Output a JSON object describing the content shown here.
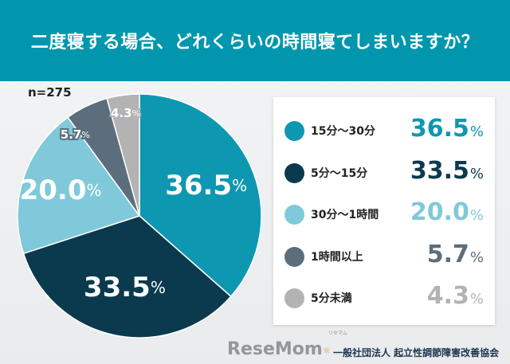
{
  "header": {
    "title": "二度寝する場合、どれくらいの時間寝てしまいますか？"
  },
  "chart_data": {
    "type": "pie",
    "title": "二度寝する場合、どれくらいの時間寝てしまいますか？",
    "sample": "n=275",
    "unit": "%",
    "categories": [
      "15分～30分",
      "5分～15分",
      "30分～1時間",
      "1時間以上",
      "5分未満"
    ],
    "values": [
      36.5,
      33.5,
      20.0,
      5.7,
      4.3
    ],
    "labels": [
      "36.5",
      "33.5",
      "20.0",
      "5.7",
      "4.3"
    ],
    "colors": [
      "#0e97b0",
      "#0b3a4e",
      "#7fc9da",
      "#5c6e7c",
      "#b3b3b3"
    ],
    "start": "12 o'clock, clockwise",
    "legend": "right"
  },
  "footer": {
    "org": "一般社団法人 起立性調節障害改善協会",
    "watermark": "ReseMom",
    "watermark_kana": "リセマム"
  }
}
